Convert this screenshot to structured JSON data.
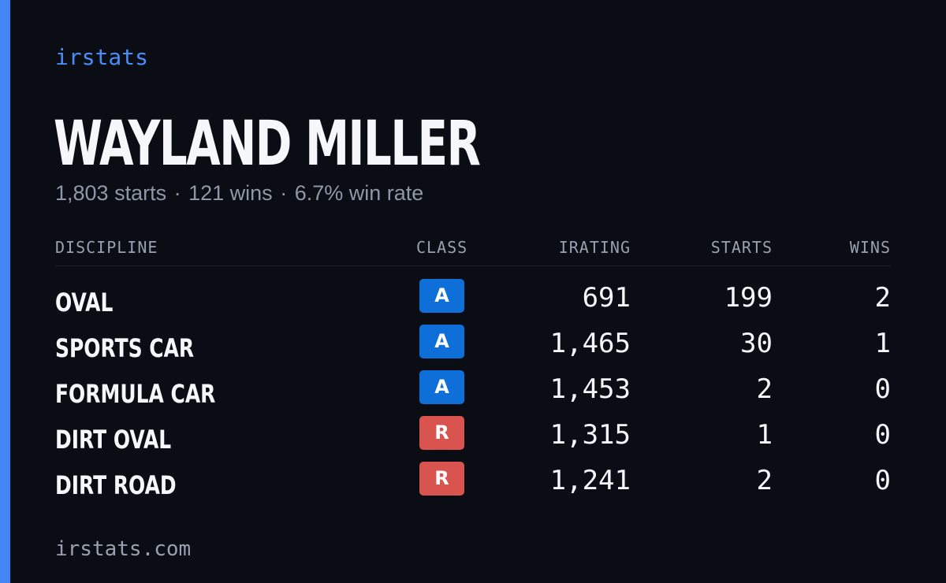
{
  "brand": "irstats",
  "driver": {
    "name": "WAYLAND MILLER",
    "starts_text": "1,803 starts",
    "wins_text": "121 wins",
    "win_rate_text": "6.7% win rate",
    "separator": "·"
  },
  "table": {
    "headers": {
      "discipline": "DISCIPLINE",
      "class": "CLASS",
      "irating": "IRATING",
      "starts": "STARTS",
      "wins": "WINS"
    },
    "rows": [
      {
        "discipline": "OVAL",
        "class": "A",
        "irating": "691",
        "starts": "199",
        "wins": "2"
      },
      {
        "discipline": "SPORTS CAR",
        "class": "A",
        "irating": "1,465",
        "starts": "30",
        "wins": "1"
      },
      {
        "discipline": "FORMULA CAR",
        "class": "A",
        "irating": "1,453",
        "starts": "2",
        "wins": "0"
      },
      {
        "discipline": "DIRT OVAL",
        "class": "R",
        "irating": "1,315",
        "starts": "1",
        "wins": "0"
      },
      {
        "discipline": "DIRT ROAD",
        "class": "R",
        "irating": "1,241",
        "starts": "2",
        "wins": "0"
      }
    ]
  },
  "footer": {
    "url": "irstats.com"
  },
  "colors": {
    "background": "#0a0d14",
    "accent": "#4285f4",
    "class_A": "#0f6fd9",
    "class_R": "#d9534f"
  }
}
